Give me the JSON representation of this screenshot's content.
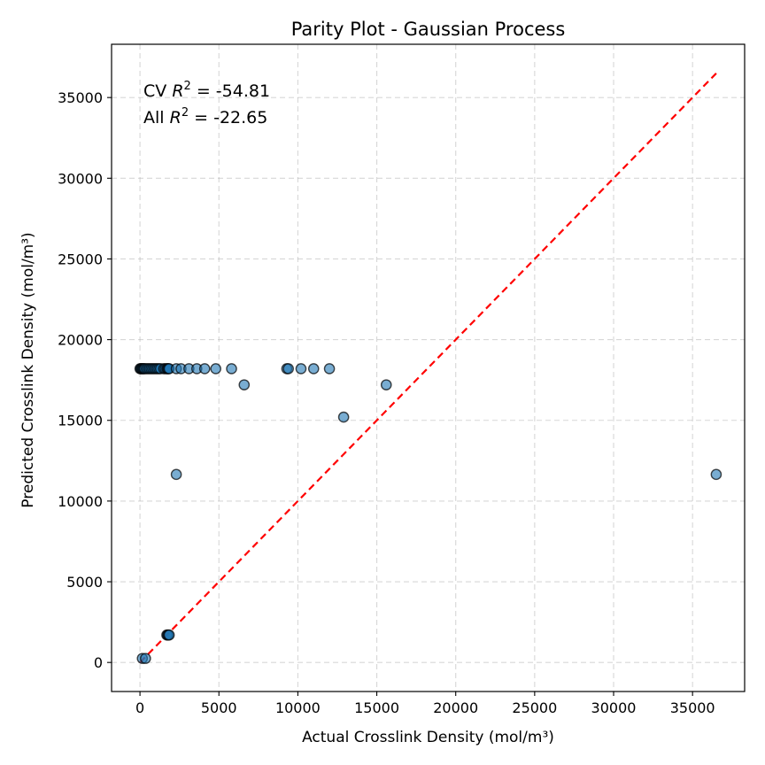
{
  "chart_data": {
    "type": "scatter",
    "title": "Parity Plot - Gaussian Process",
    "xlabel": "Actual Crosslink Density (mol/m³)",
    "ylabel": "Predicted Crosslink Density (mol/m³)",
    "xlim": [
      -1800,
      38300
    ],
    "ylim": [
      -1800,
      38300
    ],
    "xticks": [
      0,
      5000,
      10000,
      15000,
      20000,
      25000,
      30000,
      35000
    ],
    "yticks": [
      0,
      5000,
      10000,
      15000,
      20000,
      25000,
      30000,
      35000
    ],
    "grid": true,
    "marker_color": "#1f77b4",
    "parity_line": {
      "from": 0,
      "to": 36500,
      "color": "#ff0000"
    },
    "annotations": [
      {
        "prefix": "CV ",
        "value": " = -54.81"
      },
      {
        "prefix": "All ",
        "value": " = -22.65"
      }
    ],
    "series": [
      {
        "points": [
          [
            0,
            18200
          ],
          [
            50,
            18200
          ],
          [
            100,
            18200
          ],
          [
            150,
            18200
          ],
          [
            200,
            18200
          ],
          [
            250,
            18200
          ],
          [
            300,
            18200
          ],
          [
            400,
            18200
          ],
          [
            500,
            18200
          ],
          [
            600,
            18200
          ],
          [
            700,
            18200
          ],
          [
            800,
            18200
          ],
          [
            900,
            18200
          ],
          [
            1000,
            18200
          ],
          [
            1100,
            18200
          ],
          [
            1200,
            18200
          ],
          [
            1300,
            18200
          ],
          [
            1500,
            18200
          ],
          [
            1600,
            18200
          ],
          [
            1700,
            18200
          ],
          [
            1750,
            18200
          ],
          [
            1800,
            18200
          ],
          [
            1850,
            18200
          ],
          [
            2300,
            18200
          ],
          [
            2600,
            18200
          ],
          [
            3100,
            18200
          ],
          [
            3600,
            18200
          ],
          [
            4100,
            18200
          ],
          [
            4800,
            18200
          ],
          [
            5800,
            18200
          ],
          [
            9300,
            18200
          ],
          [
            9400,
            18200
          ],
          [
            10200,
            18200
          ],
          [
            11000,
            18200
          ],
          [
            12000,
            18200
          ],
          [
            6600,
            17200
          ],
          [
            15600,
            17200
          ],
          [
            12900,
            15200
          ],
          [
            2300,
            11650
          ],
          [
            36500,
            11650
          ],
          [
            1700,
            1700
          ],
          [
            1750,
            1700
          ],
          [
            1800,
            1700
          ],
          [
            1850,
            1700
          ],
          [
            150,
            250
          ],
          [
            350,
            250
          ]
        ]
      }
    ]
  }
}
